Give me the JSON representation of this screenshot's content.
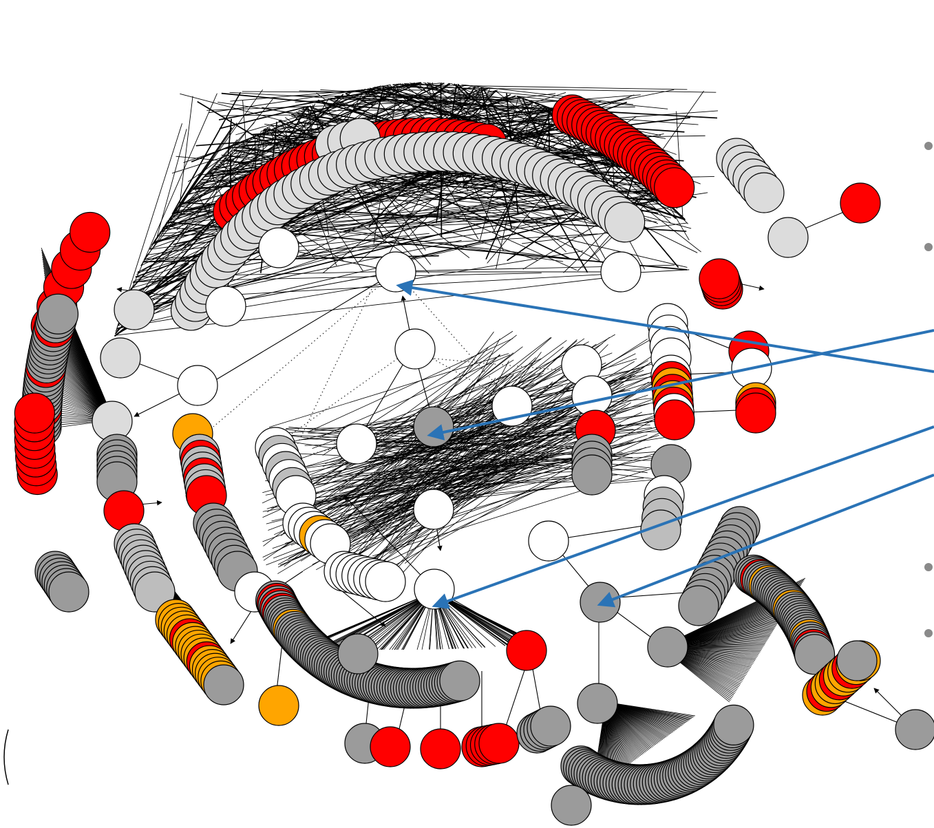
{
  "diagram": {
    "type": "directed-graph",
    "edge_color": "#000000",
    "dotted_edge_color": "#333333",
    "callout_color": "#2a73b6",
    "node_colors": {
      "red": "#ff0000",
      "orange": "#ffa500",
      "light": "#dcdcdc",
      "silver": "#bdbdbd",
      "gray": "#9b9b9b",
      "white": "#ffffff"
    }
  },
  "slide_bullets": {
    "color": "#8a8a8a",
    "count": 4
  }
}
